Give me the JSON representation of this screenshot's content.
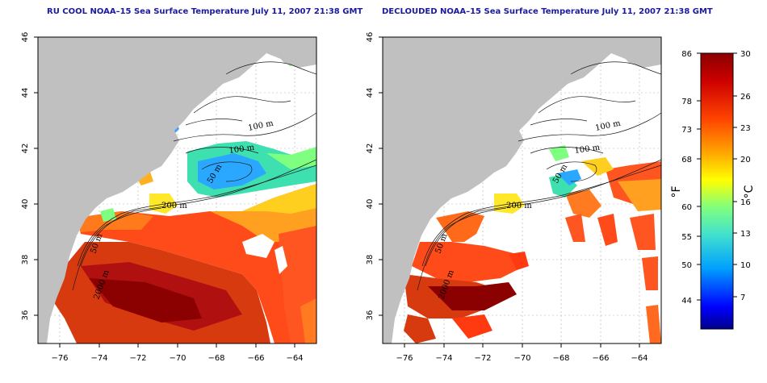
{
  "maps": [
    {
      "title": "RU COOL NOAA–15 Sea Surface Temperature July 11, 2007 21:38 GMT",
      "contour_labels": [
        "100 m",
        "100 m",
        "50 m",
        "200 m",
        "50 m",
        "2000 m"
      ]
    },
    {
      "title": "DECLOUDED NOAA–15 Sea Surface Temperature July 11, 2007 21:38 GMT",
      "contour_labels": [
        "100 m",
        "100 m",
        "50 m",
        "200 m",
        "50 m",
        "2000 m"
      ]
    }
  ],
  "axes": {
    "x_ticks": [
      "−76",
      "−74",
      "−72",
      "−70",
      "−68",
      "−66",
      "−64"
    ],
    "y_ticks": [
      "36",
      "38",
      "40",
      "42",
      "44",
      "46"
    ],
    "lon_range": [
      -77.2,
      -63.0
    ],
    "lat_range": [
      35.0,
      46.0
    ]
  },
  "colorbar": {
    "fahrenheit_label": "°F",
    "celsius_label": "°C",
    "fahrenheit_ticks": [
      "86",
      "78",
      "73",
      "68",
      "60",
      "55",
      "50",
      "44"
    ],
    "celsius_ticks": [
      "30",
      "26",
      "23",
      "20",
      "16",
      "13",
      "10",
      "7"
    ],
    "celsius_range": [
      4,
      30
    ],
    "colors": [
      "#00008b",
      "#0000ff",
      "#00bfff",
      "#40e0d0",
      "#7fff7f",
      "#ffff00",
      "#ffa500",
      "#ff4500",
      "#cc0000",
      "#8b0000"
    ]
  },
  "colors": {
    "land": "#c0c0c0",
    "ocean_missing": "#ffffff",
    "title": "#1a1aa0"
  }
}
